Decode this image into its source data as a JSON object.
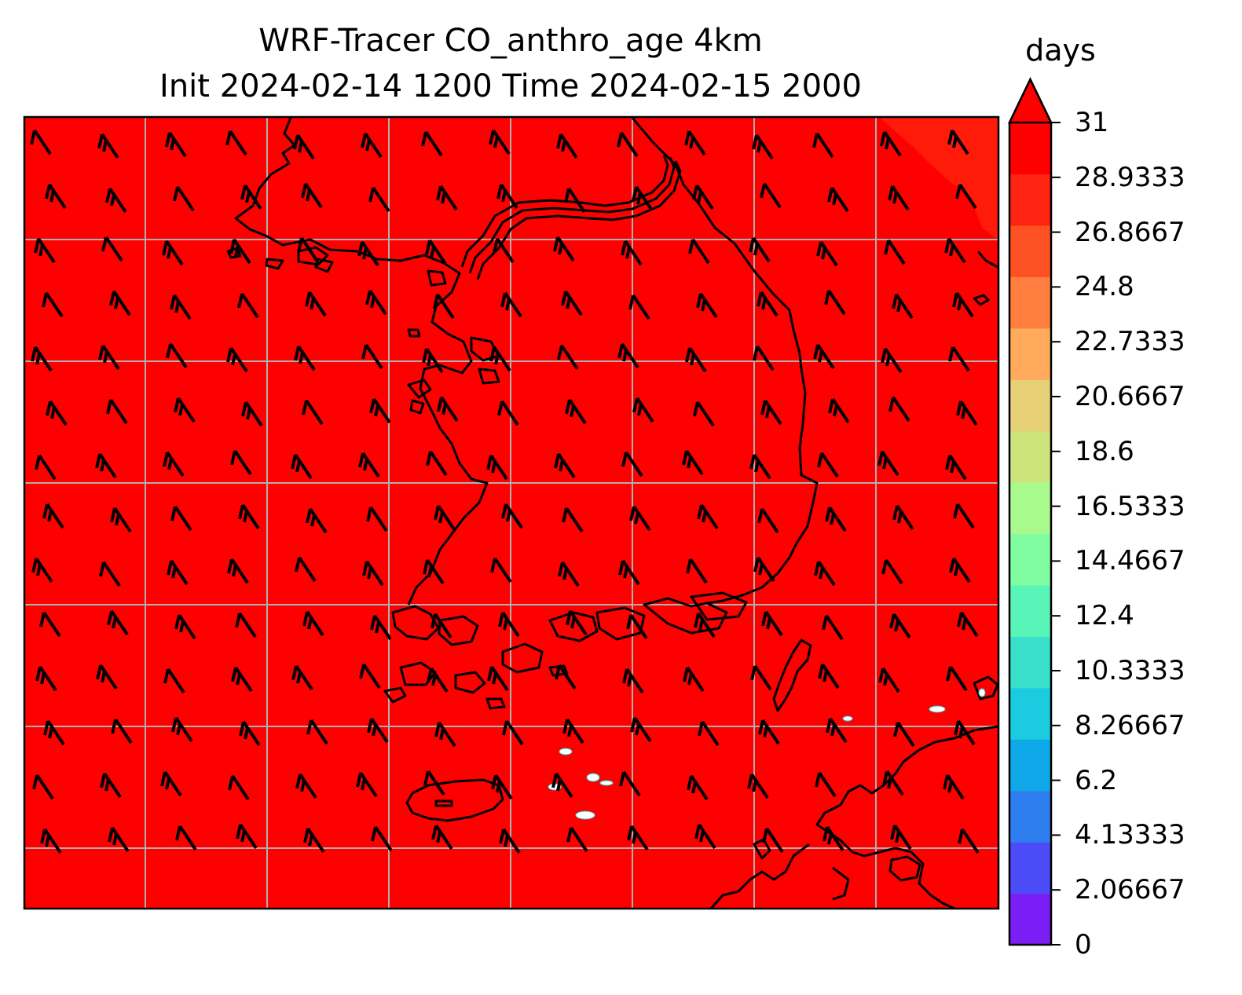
{
  "title": {
    "line1": "WRF-Tracer CO_anthro_age 4km",
    "line2": "Init 2024-02-14 1200 Time 2024-02-15 2000"
  },
  "colorbar": {
    "unit": "days",
    "extend": "max",
    "ticks": [
      "0",
      "2.06667",
      "4.13333",
      "6.2",
      "8.26667",
      "10.3333",
      "12.4",
      "14.4667",
      "16.5333",
      "18.6",
      "20.6667",
      "22.7333",
      "24.8",
      "26.8667",
      "28.9333",
      "31"
    ],
    "colors": [
      "#7a1ef5",
      "#4b4cf7",
      "#2e7ef0",
      "#0fa8e8",
      "#1bcbdf",
      "#38e0cc",
      "#58f4b8",
      "#7ffda0",
      "#a8fa8c",
      "#cde47c",
      "#e6cf76",
      "#ffaa5c",
      "#ff7e40",
      "#ff5224",
      "#ff2311",
      "#ff0000"
    ],
    "value_range": [
      0,
      31
    ]
  },
  "map": {
    "field_color": "#ff0000",
    "field_value": "31 (field saturated at colorbar maximum)",
    "gridlines": true,
    "wind_barbs": true,
    "coastlines": true,
    "barb_direction": "northwesterly"
  }
}
